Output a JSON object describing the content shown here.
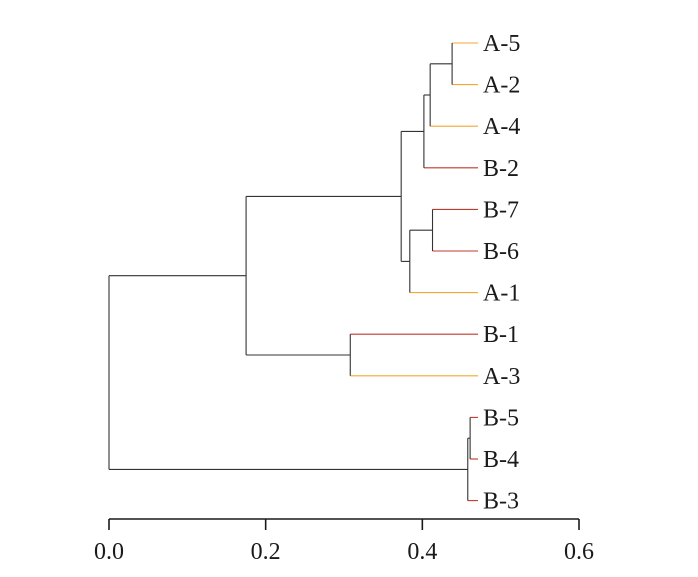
{
  "chart_data": {
    "type": "dendrogram",
    "title": "",
    "xlabel": "",
    "ylabel": "",
    "xlim": [
      0,
      0.6
    ],
    "x_ticks": [
      0.0,
      0.2,
      0.4,
      0.6
    ],
    "x_tick_labels": [
      "0.0",
      "0.2",
      "0.4",
      "0.6"
    ],
    "grid": false,
    "leaves": [
      {
        "name": "A-5",
        "group": "A"
      },
      {
        "name": "A-2",
        "group": "A"
      },
      {
        "name": "A-4",
        "group": "A"
      },
      {
        "name": "B-2",
        "group": "B"
      },
      {
        "name": "B-7",
        "group": "B"
      },
      {
        "name": "B-6",
        "group": "B"
      },
      {
        "name": "A-1",
        "group": "A"
      },
      {
        "name": "B-1",
        "group": "B"
      },
      {
        "name": "A-3",
        "group": "A"
      },
      {
        "name": "B-5",
        "group": "B"
      },
      {
        "name": "B-4",
        "group": "B"
      },
      {
        "name": "B-3",
        "group": "B"
      }
    ],
    "group_colors": {
      "A": "#f0a830",
      "B": "#c0392b"
    },
    "link_color": "#333333",
    "merges": [
      {
        "id": "m1",
        "children": [
          "A-5",
          "A-2"
        ],
        "height": 0.438
      },
      {
        "id": "m2",
        "children": [
          "m1",
          "A-4"
        ],
        "height": 0.41
      },
      {
        "id": "m3",
        "children": [
          "m2",
          "B-2"
        ],
        "height": 0.402
      },
      {
        "id": "m4",
        "children": [
          "B-7",
          "B-6"
        ],
        "height": 0.413
      },
      {
        "id": "m5",
        "children": [
          "m4",
          "A-1"
        ],
        "height": 0.384
      },
      {
        "id": "m6",
        "children": [
          "m3",
          "m5"
        ],
        "height": 0.373
      },
      {
        "id": "m7",
        "children": [
          "B-1",
          "A-3"
        ],
        "height": 0.308
      },
      {
        "id": "m8",
        "children": [
          "m6",
          "m7"
        ],
        "height": 0.175
      },
      {
        "id": "m9",
        "children": [
          "B-5",
          "B-4"
        ],
        "height": 0.461
      },
      {
        "id": "m10",
        "children": [
          "m9",
          "B-3"
        ],
        "height": 0.458
      },
      {
        "id": "m11",
        "children": [
          "m8",
          "m10"
        ],
        "height": 0.0
      }
    ]
  }
}
